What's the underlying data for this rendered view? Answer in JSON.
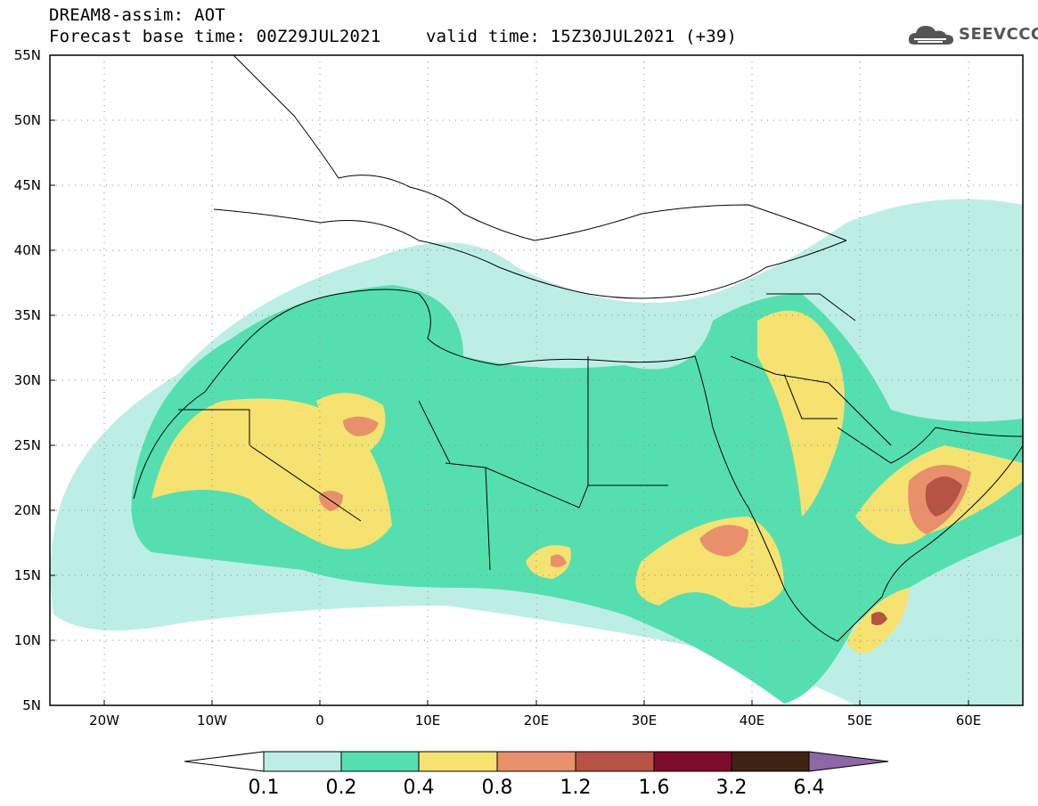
{
  "header": {
    "line1": "DREAM8-assim: AOT",
    "line2": "Forecast base time: 00Z29JUL2021",
    "valid": "valid time: 15Z30JUL2021 (+39)"
  },
  "logo": {
    "text": "SEEVCCC",
    "icon": "cloud-icon",
    "color": "#555555"
  },
  "axes": {
    "lon_labels": [
      "20W",
      "10W",
      "0",
      "10E",
      "20E",
      "30E",
      "40E",
      "50E",
      "60E"
    ],
    "lat_labels": [
      "55N",
      "50N",
      "45N",
      "40N",
      "35N",
      "30N",
      "25N",
      "20N",
      "15N",
      "10N",
      "5N"
    ],
    "lon_range": [
      -25,
      65
    ],
    "lat_range": [
      5,
      55
    ]
  },
  "colorbar": {
    "labels": [
      "0.1",
      "0.2",
      "0.4",
      "0.8",
      "1.2",
      "1.6",
      "3.2",
      "6.4"
    ],
    "colors": [
      "#ffffff",
      "#bdeee6",
      "#55dfb0",
      "#f5e271",
      "#e8906b",
      "#b65345",
      "#7e0b2b",
      "#3e2213",
      "#8e67a6"
    ]
  }
}
